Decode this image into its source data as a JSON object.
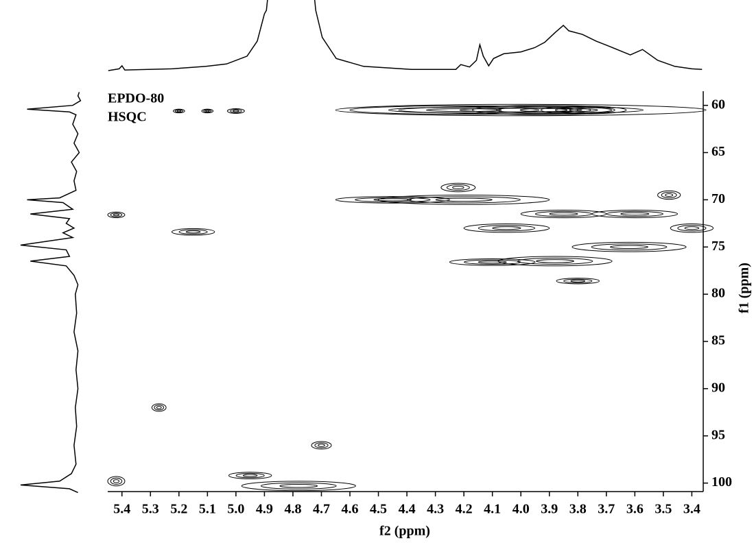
{
  "chart_data": {
    "type": "contour",
    "annotations": [
      "EPDO-80",
      "HSQC"
    ],
    "xlabel": "f2 (ppm)",
    "ylabel": "f1 (ppm)",
    "xlim": [
      5.45,
      3.36
    ],
    "ylim": [
      58.5,
      100.9
    ],
    "xticks": [
      5.4,
      5.3,
      5.2,
      5.1,
      {
        "value": 5,
        "label": "5.0"
      },
      4.9,
      4.8,
      4.7,
      4.6,
      4.5,
      4.4,
      4.3,
      4.2,
      4.1,
      {
        "value": 4,
        "label": "4.0"
      },
      3.9,
      3.8,
      3.7,
      3.6,
      3.5,
      3.4
    ],
    "yticks": [
      60,
      65,
      70,
      75,
      80,
      85,
      90,
      95,
      100
    ],
    "color": "#000000",
    "peaks": {
      "f2": [
        4.0,
        3.92,
        3.78,
        4.2,
        5.0,
        5.1,
        5.2,
        4.22,
        4.2,
        4.45,
        3.85,
        3.6,
        4.05,
        3.4,
        5.15,
        3.62,
        3.88,
        4.1,
        3.8,
        3.48,
        5.42,
        5.27,
        4.7,
        4.78,
        5.42,
        4.95
      ],
      "f1": [
        60.5,
        60.5,
        60.5,
        60.5,
        60.6,
        60.6,
        60.6,
        68.7,
        70,
        70,
        71.5,
        71.5,
        73,
        73,
        73.4,
        75,
        76.5,
        76.6,
        78.6,
        69.5,
        71.6,
        92,
        96,
        100.3,
        99.8,
        99.2
      ],
      "width": [
        1.3,
        0.5,
        0.3,
        0.8,
        0.06,
        0.04,
        0.04,
        0.12,
        0.6,
        0.4,
        0.3,
        0.3,
        0.3,
        0.15,
        0.15,
        0.4,
        0.4,
        0.3,
        0.15,
        0.08,
        0.06,
        0.05,
        0.07,
        0.4,
        0.06,
        0.15
      ],
      "height": [
        1.2,
        1.0,
        0.8,
        0.9,
        0.5,
        0.4,
        0.4,
        0.9,
        1.0,
        0.7,
        0.8,
        0.8,
        0.9,
        0.9,
        0.7,
        1.0,
        1.0,
        0.7,
        0.6,
        0.9,
        0.6,
        0.8,
        0.8,
        1.0,
        1.0,
        0.7
      ]
    },
    "top_projection": {
      "x": [
        5.448,
        5.41,
        5.4,
        5.39,
        5.225,
        5.105,
        5.033,
        4.961,
        4.925,
        4.9,
        4.893,
        4.805,
        4.72,
        4.697,
        4.648,
        4.552,
        4.384,
        4.228,
        4.211,
        4.18,
        4.156,
        4.144,
        4.132,
        4.113,
        4.096,
        4.06,
        4.0,
        3.952,
        3.916,
        3.88,
        3.851,
        3.832,
        3.784,
        3.736,
        3.688,
        3.616,
        3.573,
        3.52,
        3.46,
        3.4,
        3.364
      ],
      "values": [
        0,
        3,
        8,
        1,
        3,
        7,
        11,
        24,
        49,
        94,
        100,
        500,
        100,
        55,
        20,
        7,
        2,
        2,
        10,
        6,
        17,
        43,
        24,
        8,
        20,
        28,
        31,
        38,
        47,
        63,
        75,
        66,
        60,
        49,
        40,
        26,
        35,
        17,
        7,
        3,
        2
      ]
    },
    "side_projection": {
      "y": [
        58.6,
        59,
        59.5,
        60,
        60.4,
        60.7,
        61,
        62,
        63,
        64,
        65,
        66,
        67,
        68,
        69,
        69.8,
        70,
        70.3,
        71,
        71.5,
        72,
        72.5,
        73,
        73.5,
        74,
        74.8,
        75.3,
        76,
        76.5,
        77,
        78,
        79,
        80,
        82,
        84,
        86,
        88,
        90,
        92,
        94,
        96,
        98,
        99,
        99.8,
        100.2,
        100.6,
        101
      ],
      "values": [
        10,
        12,
        8,
        20,
        90,
        25,
        15,
        20,
        12,
        18,
        10,
        22,
        14,
        18,
        15,
        40,
        90,
        35,
        20,
        85,
        25,
        30,
        18,
        35,
        20,
        100,
        30,
        25,
        85,
        30,
        18,
        12,
        16,
        14,
        18,
        12,
        15,
        12,
        16,
        14,
        18,
        15,
        22,
        40,
        100,
        25,
        12
      ]
    }
  }
}
